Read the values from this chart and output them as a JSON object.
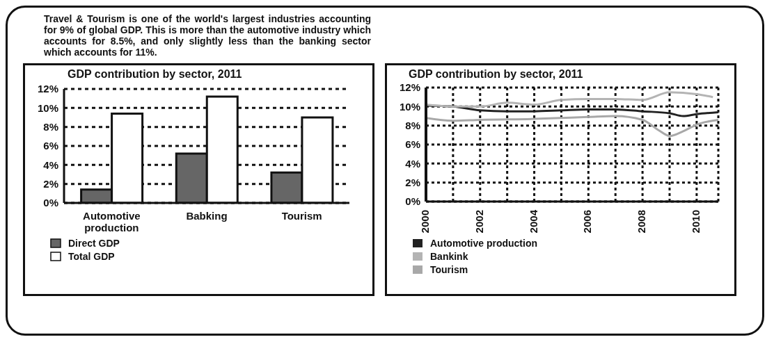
{
  "chart_data": [
    {
      "type": "bar",
      "title": "GDP contribution by sector, 2011",
      "annotations": [
        "Travel & Tourism is one of the world's largest industries accounting for 9% of global GDP. This is more than the automotive industry which accounts for 8.5%, and only slightly less than the banking sector which accounts for 11%."
      ],
      "categories": [
        "Automotive production",
        "Babking",
        "Tourism"
      ],
      "series": [
        {
          "name": "Direct GDP",
          "color": "#666666",
          "values": [
            1.4,
            5.2,
            3.2
          ]
        },
        {
          "name": "Total GDP",
          "color": "#ffffff",
          "values": [
            9.4,
            11.2,
            9.0
          ]
        }
      ],
      "ylim": [
        0,
        12
      ],
      "yticks": [
        {
          "value": 0,
          "label": "0%"
        },
        {
          "value": 2,
          "label": "2%"
        },
        {
          "value": 4,
          "label": "4%"
        },
        {
          "value": 6,
          "label": "6%"
        },
        {
          "value": 8,
          "label": "8%"
        },
        {
          "value": 10,
          "label": "10%"
        },
        {
          "value": 12,
          "label": "12%"
        }
      ],
      "grid": "y",
      "legend": "bottom left"
    },
    {
      "type": "line",
      "title": "GDP contribution by sector, 2011",
      "series": [
        {
          "name": "Automotive production",
          "color": "#222222",
          "x": [
            2000,
            2001,
            2002,
            2003,
            2004,
            2005,
            2006,
            2007,
            2008,
            2009,
            2009.5,
            2010,
            2010.8
          ],
          "values": [
            10.1,
            10.0,
            9.6,
            9.5,
            9.5,
            9.6,
            9.7,
            9.7,
            9.5,
            9.3,
            9.0,
            9.2,
            9.4
          ]
        },
        {
          "name": "Bankink",
          "color": "#b4b4b4",
          "x": [
            2000,
            2001,
            2002,
            2003,
            2004,
            2005,
            2006,
            2007,
            2008,
            2009,
            2010,
            2010.6
          ],
          "values": [
            10.2,
            10.0,
            10.0,
            10.4,
            10.2,
            10.7,
            10.8,
            10.8,
            10.7,
            11.5,
            11.3,
            11.0
          ]
        },
        {
          "name": "Tourism",
          "color": "#a8a8a8",
          "x": [
            2000,
            2001,
            2002,
            2004,
            2006,
            2007,
            2008,
            2008.6,
            2009,
            2009.5,
            2010,
            2010.8
          ],
          "values": [
            8.8,
            8.5,
            8.6,
            8.7,
            8.9,
            9.0,
            8.6,
            7.5,
            6.9,
            7.4,
            8.1,
            8.6
          ]
        }
      ],
      "xlim": [
        2000,
        2010.8
      ],
      "xticks": [
        2000,
        {
          "value": 2001,
          "label": null
        },
        2002,
        {
          "value": 2003,
          "label": null
        },
        2004,
        {
          "value": 2005,
          "label": null
        },
        2006,
        {
          "value": 2007,
          "label": null
        },
        2008,
        {
          "value": 2009,
          "label": null
        },
        2010
      ],
      "ylim": [
        0,
        12
      ],
      "yticks": [
        {
          "value": 0,
          "label": "0%"
        },
        {
          "value": 2,
          "label": "2%"
        },
        {
          "value": 4,
          "label": "4%"
        },
        {
          "value": 6,
          "label": "6%"
        },
        {
          "value": 8,
          "label": "8%"
        },
        {
          "value": 10,
          "label": "10%"
        },
        {
          "value": 12,
          "label": "12%"
        }
      ],
      "grid": true,
      "legend": "bottom left"
    }
  ]
}
